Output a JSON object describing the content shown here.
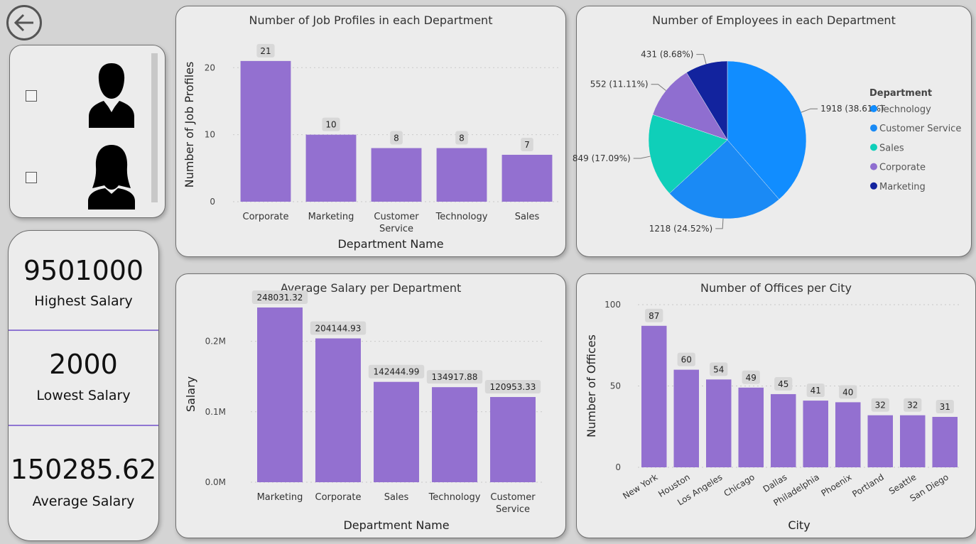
{
  "kpis": {
    "highest_value": "9501000",
    "highest_label": "Highest Salary",
    "lowest_value": "2000",
    "lowest_label": "Lowest Salary",
    "average_value": "150285.62",
    "average_label": "Average Salary"
  },
  "slicer": {
    "options": [
      "male-icon",
      "female-icon"
    ]
  },
  "colors": {
    "bar": "#9370d0",
    "background": "#ececec"
  },
  "chart_data": [
    {
      "id": "job_profiles",
      "type": "bar",
      "title": "Number of Job Profiles in each Department",
      "xlabel": "Department Name",
      "ylabel": "Number of Job Profiles",
      "categories": [
        "Corporate",
        "Marketing",
        "Customer Service",
        "Technology",
        "Sales"
      ],
      "values": [
        21,
        10,
        8,
        8,
        7
      ],
      "ylim": [
        0,
        23
      ],
      "yticks": [
        0,
        10,
        20
      ],
      "ytick_labels": [
        "0",
        "10",
        "20"
      ],
      "grid": true
    },
    {
      "id": "employees",
      "type": "pie",
      "title": "Number of Employees in each Department",
      "legend_title": "Department",
      "legend_position": "right",
      "categories": [
        "Technology",
        "Customer Service",
        "Sales",
        "Corporate",
        "Marketing"
      ],
      "values": [
        1918,
        1218,
        849,
        552,
        431
      ],
      "labels": [
        "1918 (38.61%)",
        "1218 (24.52%)",
        "849 (17.09%)",
        "552 (11.11%)",
        "431 (8.68%)"
      ],
      "colors": [
        "#118dff",
        "#1a8af5",
        "#0fcfb9",
        "#8f6ed0",
        "#12239e"
      ]
    },
    {
      "id": "avg_salary",
      "type": "bar",
      "title": "Average Salary per Department",
      "xlabel": "Department Name",
      "ylabel": "Salary",
      "categories": [
        "Marketing",
        "Corporate",
        "Sales",
        "Technology",
        "Customer Service"
      ],
      "values": [
        248031.32,
        204144.93,
        142444.99,
        134917.88,
        120953.33
      ],
      "value_labels": [
        "248031.32",
        "204144.93",
        "142444.99",
        "134917.88",
        "120953.33"
      ],
      "ylim": [
        0,
        250000
      ],
      "yticks": [
        0,
        100000,
        200000
      ],
      "ytick_labels": [
        "0.0M",
        "0.1M",
        "0.2M"
      ],
      "grid": true
    },
    {
      "id": "offices",
      "type": "bar",
      "title": "Number of Offices per City",
      "xlabel": "City",
      "ylabel": "Number of Offices",
      "categories": [
        "New York",
        "Houston",
        "Los Angeles",
        "Chicago",
        "Dallas",
        "Philadelphia",
        "Phoenix",
        "Portland",
        "Seattle",
        "San Diego"
      ],
      "values": [
        87,
        60,
        54,
        49,
        45,
        41,
        40,
        32,
        32,
        31
      ],
      "ylim": [
        0,
        100
      ],
      "yticks": [
        0,
        50,
        100
      ],
      "ytick_labels": [
        "0",
        "50",
        "100"
      ],
      "grid": true
    }
  ]
}
